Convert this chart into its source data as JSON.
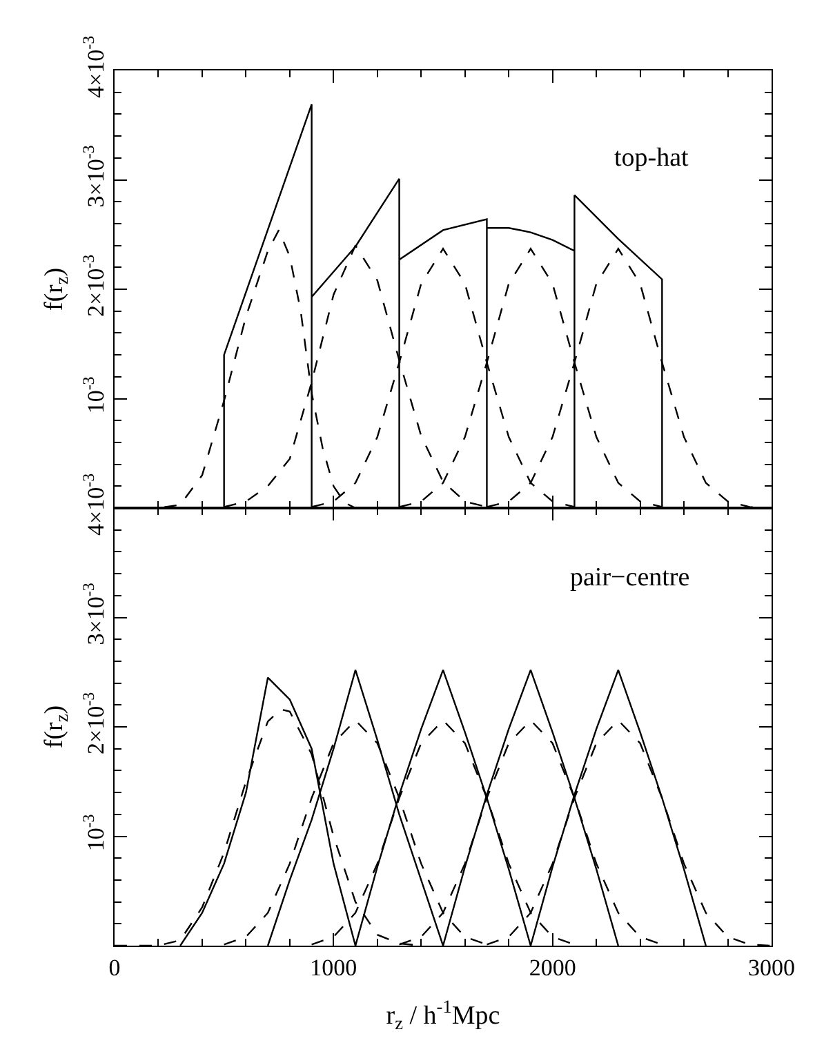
{
  "chart_data": [
    {
      "type": "line",
      "ylabel": "f(r$_{z}$)",
      "annotations": [
        "top-hat"
      ],
      "xlim": [
        0,
        3000
      ],
      "xticks": [
        0,
        1000,
        2000,
        3000
      ],
      "ylim": [
        0,
        0.004
      ],
      "yticks": [
        {
          "value": 0.001,
          "label": "10$^{-3}$"
        },
        {
          "value": 0.002,
          "label": "2×10$^{-3}$"
        },
        {
          "value": 0.003,
          "label": "3×10$^{-3}$"
        },
        {
          "value": 0.004,
          "label": "4×10$^{-3}$"
        }
      ],
      "tick_labels": "y",
      "marker": "none",
      "series": [
        {
          "color": "#000000",
          "line_style": "solid",
          "x": [
            500,
            500,
            900,
            900,
            900,
            1100,
            1300,
            1300,
            1300,
            1500,
            1700,
            1700,
            1700,
            1800,
            1900,
            2000,
            2100,
            2100,
            2100,
            2300,
            2500,
            2500
          ],
          "values": [
            0,
            0.0014,
            0.00369,
            0,
            0.00193,
            0.00239,
            0.00301,
            0,
            0.00227,
            0.00254,
            0.00264,
            0,
            0.00256,
            0.00256,
            0.00252,
            0.00245,
            0.00235,
            0,
            0.00286,
            0.00246,
            0.00209,
            0
          ]
        },
        {
          "color": "#000000",
          "line_style": "dashed",
          "x": [
            0,
            200,
            300,
            400,
            500,
            600,
            700,
            750,
            800,
            850,
            900,
            950,
            1000,
            1050,
            1100,
            1200
          ],
          "values": [
            0,
            0,
            3e-05,
            0.0003,
            0.00098,
            0.00175,
            0.00235,
            0.00254,
            0.0023,
            0.0018,
            0.00105,
            0.00055,
            0.0002,
            5e-05,
            0,
            0
          ]
        },
        {
          "color": "#000000",
          "line_style": "dashed",
          "x": [
            500,
            600,
            700,
            800,
            900,
            1000,
            1100,
            1200,
            1300,
            1400,
            1500,
            1600,
            1700
          ],
          "values": [
            1e-05,
            6e-05,
            0.0002,
            0.00045,
            0.00115,
            0.00195,
            0.0024,
            0.00208,
            0.00135,
            0.00066,
            0.00024,
            6e-05,
            1e-05
          ]
        },
        {
          "color": "#000000",
          "line_style": "dashed",
          "x": [
            900,
            1000,
            1100,
            1200,
            1300,
            1400,
            1500,
            1600,
            1700,
            1800,
            1900,
            2000,
            2100
          ],
          "values": [
            1e-05,
            6e-05,
            0.00023,
            0.00065,
            0.00133,
            0.00205,
            0.00237,
            0.00205,
            0.00133,
            0.00065,
            0.00023,
            6e-05,
            1e-05
          ]
        },
        {
          "color": "#000000",
          "line_style": "dashed",
          "x": [
            1300,
            1400,
            1500,
            1600,
            1700,
            1800,
            1900,
            2000,
            2100,
            2200,
            2300,
            2400,
            2500
          ],
          "values": [
            1e-05,
            6e-05,
            0.00023,
            0.00065,
            0.00133,
            0.00205,
            0.00237,
            0.00205,
            0.00133,
            0.00065,
            0.00023,
            6e-05,
            1e-05
          ]
        },
        {
          "color": "#000000",
          "line_style": "dashed",
          "x": [
            1700,
            1800,
            1900,
            2000,
            2100,
            2200,
            2300,
            2400,
            2500,
            2600,
            2700,
            2800,
            2900,
            3000
          ],
          "values": [
            1e-05,
            6e-05,
            0.00023,
            0.00065,
            0.00133,
            0.00205,
            0.00237,
            0.00205,
            0.00133,
            0.00065,
            0.00023,
            6e-05,
            1e-05,
            0
          ]
        }
      ]
    },
    {
      "type": "line",
      "xlabel": "r$_{z}$ / h$^{-1}$Mpc",
      "ylabel": "f(r$_{z}$)",
      "annotations": [
        "pair−centre"
      ],
      "xlim": [
        0,
        3000
      ],
      "xticks": [
        0,
        1000,
        2000,
        3000
      ],
      "ylim": [
        0,
        0.004
      ],
      "yticks": [
        {
          "value": 0.001,
          "label": "10$^{-3}$"
        },
        {
          "value": 0.002,
          "label": "2×10$^{-3}$"
        },
        {
          "value": 0.003,
          "label": "3×10$^{-3}$"
        },
        {
          "value": 0.004,
          "label": "4×10$^{-3}$"
        }
      ],
      "marker": "none",
      "series": [
        {
          "color": "#000000",
          "line_style": "solid",
          "x": [
            300,
            400,
            500,
            600,
            700,
            800,
            900,
            1000,
            1100
          ],
          "values": [
            0,
            0.0003,
            0.00075,
            0.0014,
            0.00245,
            0.00225,
            0.0018,
            0.00075,
            0
          ]
        },
        {
          "color": "#000000",
          "line_style": "solid",
          "x": [
            700,
            800,
            900,
            1000,
            1100,
            1200,
            1300,
            1400,
            1500
          ],
          "values": [
            0,
            0.0006,
            0.00115,
            0.0018,
            0.00252,
            0.00188,
            0.0012,
            0.0006,
            0
          ]
        },
        {
          "color": "#000000",
          "line_style": "solid",
          "x": [
            1100,
            1200,
            1300,
            1400,
            1500,
            1600,
            1700,
            1800,
            1900
          ],
          "values": [
            0,
            0.00072,
            0.00138,
            0.00198,
            0.00252,
            0.00195,
            0.00135,
            0.0007,
            0
          ]
        },
        {
          "color": "#000000",
          "line_style": "solid",
          "x": [
            1500,
            1600,
            1700,
            1800,
            1900,
            2000,
            2100,
            2200,
            2300
          ],
          "values": [
            0,
            0.00072,
            0.00138,
            0.00198,
            0.00252,
            0.00195,
            0.00135,
            0.0007,
            0
          ]
        },
        {
          "color": "#000000",
          "line_style": "solid",
          "x": [
            1900,
            2000,
            2100,
            2200,
            2300,
            2400,
            2500,
            2600,
            2700
          ],
          "values": [
            0,
            0.00072,
            0.00138,
            0.00198,
            0.00252,
            0.00195,
            0.00135,
            0.0007,
            0
          ]
        },
        {
          "color": "#000000",
          "line_style": "dashed",
          "x": [
            0,
            200,
            300,
            400,
            500,
            600,
            700,
            760,
            800,
            900,
            1000,
            1100,
            1200,
            1300,
            1400
          ],
          "values": [
            0,
            0,
            5e-05,
            0.00035,
            0.00085,
            0.0015,
            0.00205,
            0.00216,
            0.00214,
            0.00175,
            0.001,
            0.0004,
            0.0001,
            2e-05,
            0
          ]
        },
        {
          "color": "#000000",
          "line_style": "dashed",
          "x": [
            500,
            600,
            700,
            800,
            900,
            1000,
            1100,
            1200,
            1300,
            1400,
            1500,
            1600,
            1700
          ],
          "values": [
            1e-05,
            8e-05,
            0.0003,
            0.00075,
            0.00135,
            0.00185,
            0.00206,
            0.00185,
            0.00135,
            0.00075,
            0.0003,
            8e-05,
            1e-05
          ]
        },
        {
          "color": "#000000",
          "line_style": "dashed",
          "x": [
            900,
            1000,
            1100,
            1200,
            1300,
            1400,
            1500,
            1600,
            1700,
            1800,
            1900,
            2000,
            2100
          ],
          "values": [
            1e-05,
            8e-05,
            0.0003,
            0.00075,
            0.00135,
            0.00185,
            0.00206,
            0.00185,
            0.00135,
            0.00075,
            0.0003,
            8e-05,
            1e-05
          ]
        },
        {
          "color": "#000000",
          "line_style": "dashed",
          "x": [
            1300,
            1400,
            1500,
            1600,
            1700,
            1800,
            1900,
            2000,
            2100,
            2200,
            2300,
            2400,
            2500
          ],
          "values": [
            1e-05,
            8e-05,
            0.0003,
            0.00075,
            0.00135,
            0.00185,
            0.00206,
            0.00185,
            0.00135,
            0.00075,
            0.0003,
            8e-05,
            1e-05
          ]
        },
        {
          "color": "#000000",
          "line_style": "dashed",
          "x": [
            1700,
            1800,
            1900,
            2000,
            2100,
            2200,
            2300,
            2400,
            2500,
            2600,
            2700,
            2800,
            2900,
            3000
          ],
          "values": [
            1e-05,
            8e-05,
            0.0003,
            0.00075,
            0.00135,
            0.00185,
            0.00206,
            0.00185,
            0.00135,
            0.00075,
            0.0003,
            8e-05,
            1e-05,
            0
          ]
        }
      ]
    }
  ]
}
